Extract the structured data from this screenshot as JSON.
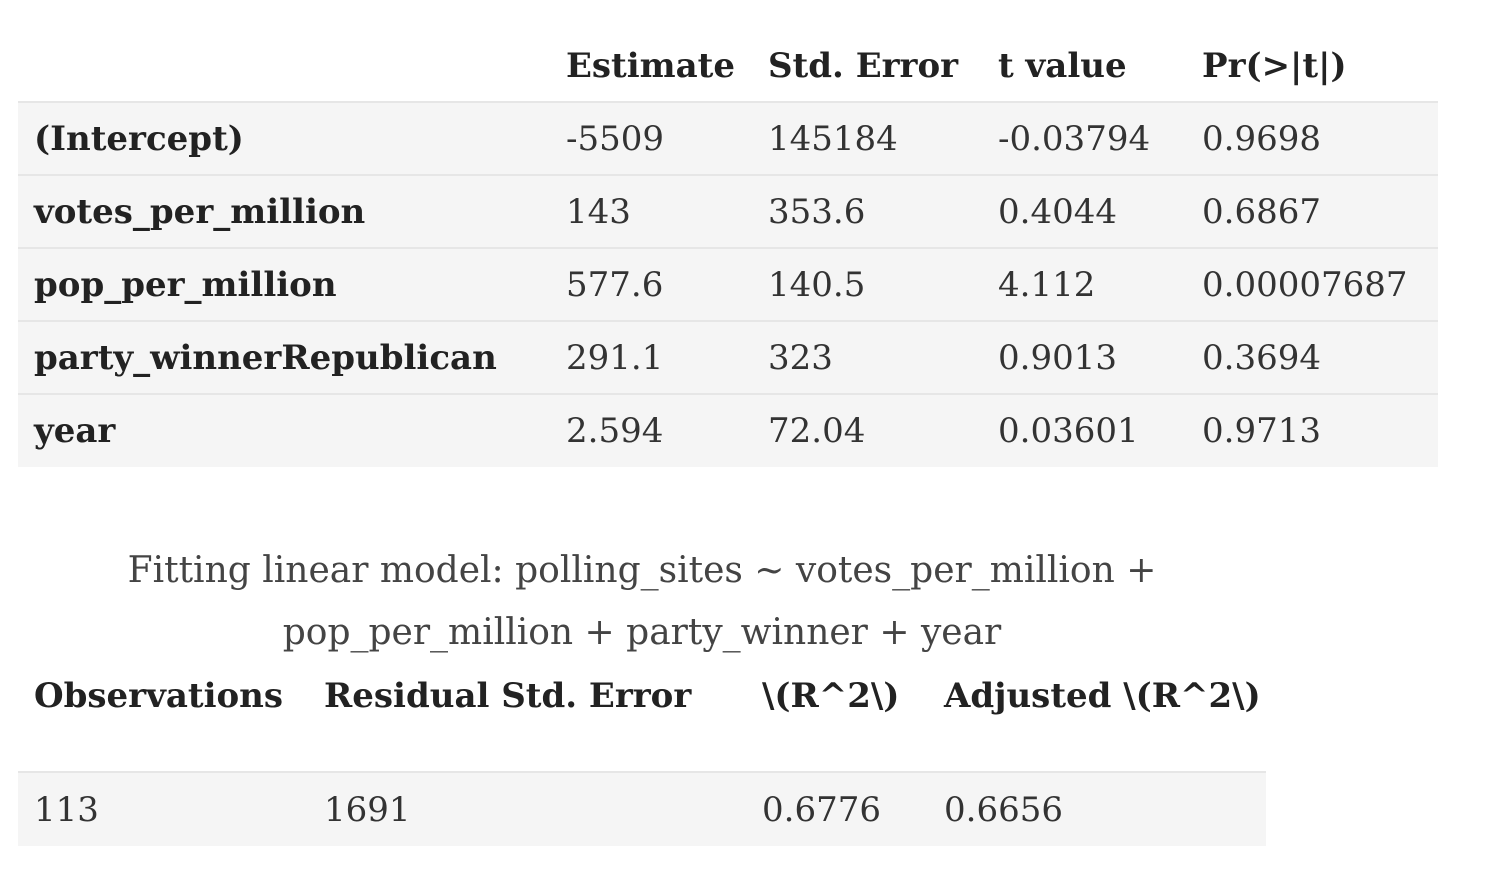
{
  "coef_table": {
    "headers": [
      "",
      "Estimate",
      "Std. Error",
      "t value",
      "Pr(>|t|)"
    ],
    "rows": [
      {
        "term": "(Intercept)",
        "estimate": "-5509",
        "std_error": "145184",
        "t_value": "-0.03794",
        "p_value": "0.9698"
      },
      {
        "term": "votes_per_million",
        "estimate": "143",
        "std_error": "353.6",
        "t_value": "0.4044",
        "p_value": "0.6867"
      },
      {
        "term": "pop_per_million",
        "estimate": "577.6",
        "std_error": "140.5",
        "t_value": "4.112",
        "p_value": "0.00007687"
      },
      {
        "term": "party_winnerRepublican",
        "estimate": "291.1",
        "std_error": "323",
        "t_value": "0.9013",
        "p_value": "0.3694"
      },
      {
        "term": "year",
        "estimate": "2.594",
        "std_error": "72.04",
        "t_value": "0.03601",
        "p_value": "0.9713"
      }
    ]
  },
  "caption": "Fitting linear model: polling_sites ~ votes_per_million + pop_per_million + party_winner + year",
  "summary_table": {
    "headers": [
      "Observations",
      "Residual Std. Error",
      "\\(R^2\\)",
      "Adjusted \\(R^2\\)"
    ],
    "rows": [
      {
        "observations": "113",
        "residual_std_error": "1691",
        "r_squared": "0.6776",
        "adjusted_r_squared": "0.6656"
      }
    ]
  }
}
